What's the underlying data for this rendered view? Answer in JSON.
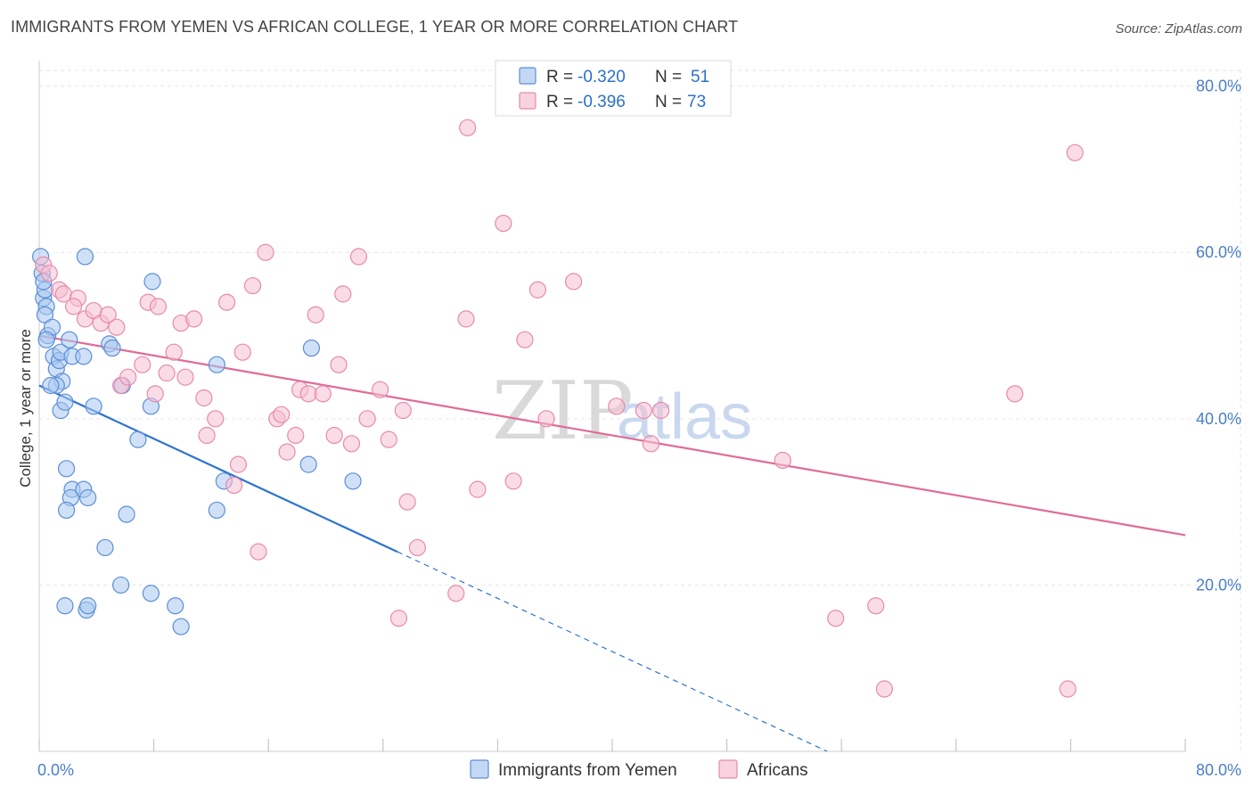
{
  "title": "IMMIGRANTS FROM YEMEN VS AFRICAN COLLEGE, 1 YEAR OR MORE CORRELATION CHART",
  "source": "Source: ZipAtlas.com",
  "watermark": {
    "zip": "ZIP",
    "atlas": "atlas"
  },
  "colors": {
    "blue_fill": "#aac8f0",
    "blue_stroke": "#5b8fd6",
    "blue_line": "#2e74d0",
    "pink_fill": "#f6bfd1",
    "pink_stroke": "#e88aab",
    "pink_line": "#e06b97",
    "grid": "#e6e6e6",
    "tick_text": "#4a7fc8"
  },
  "legend": {
    "rows": [
      {
        "r_label": "R = ",
        "r_value": "-0.320",
        "n_label": "N = ",
        "n_value": "51"
      },
      {
        "r_label": "R = ",
        "r_value": "-0.396",
        "n_label": "N = ",
        "n_value": "73"
      }
    ]
  },
  "chart_data": {
    "type": "scatter",
    "title": "IMMIGRANTS FROM YEMEN VS AFRICAN COLLEGE, 1 YEAR OR MORE CORRELATION CHART",
    "ylabel": "College, 1 year or more",
    "xlabel": "",
    "xlim": [
      0,
      80
    ],
    "ylim": [
      0,
      82
    ],
    "x_ticks": [
      "0.0%",
      "80.0%"
    ],
    "y_ticks": [
      {
        "value": 20,
        "label": "20.0%"
      },
      {
        "value": 40,
        "label": "40.0%"
      },
      {
        "value": 60,
        "label": "60.0%"
      },
      {
        "value": 80,
        "label": "80.0%"
      }
    ],
    "grid": true,
    "legend_position": "top-center",
    "series": [
      {
        "name": "Immigrants from Yemen",
        "color": "#5b8fd6",
        "r": -0.32,
        "n": 51,
        "trend": {
          "x0": 0,
          "y0": 44.0,
          "x1": 25,
          "y1": 24.0,
          "dashed_to_x": 55
        },
        "points": [
          [
            0.1,
            59.5
          ],
          [
            0.2,
            57.5
          ],
          [
            0.3,
            54.5
          ],
          [
            0.4,
            55.5
          ],
          [
            0.5,
            53.5
          ],
          [
            0.4,
            52.5
          ],
          [
            0.6,
            50.0
          ],
          [
            0.9,
            51.0
          ],
          [
            1.0,
            47.5
          ],
          [
            1.2,
            46.0
          ],
          [
            1.4,
            47.0
          ],
          [
            1.5,
            48.0
          ],
          [
            1.6,
            44.5
          ],
          [
            1.2,
            44.0
          ],
          [
            0.8,
            44.0
          ],
          [
            1.5,
            41.0
          ],
          [
            1.8,
            42.0
          ],
          [
            2.1,
            49.5
          ],
          [
            2.3,
            47.5
          ],
          [
            3.1,
            47.5
          ],
          [
            3.8,
            41.5
          ],
          [
            4.9,
            49.0
          ],
          [
            5.1,
            48.5
          ],
          [
            5.8,
            44.0
          ],
          [
            6.9,
            37.5
          ],
          [
            7.8,
            41.5
          ],
          [
            7.9,
            56.5
          ],
          [
            12.4,
            46.5
          ],
          [
            12.9,
            32.5
          ],
          [
            12.4,
            29.0
          ],
          [
            19.0,
            48.5
          ],
          [
            18.8,
            34.5
          ],
          [
            21.9,
            32.5
          ],
          [
            3.2,
            59.5
          ],
          [
            1.9,
            34.0
          ],
          [
            2.3,
            31.5
          ],
          [
            2.2,
            30.5
          ],
          [
            1.9,
            29.0
          ],
          [
            3.1,
            31.5
          ],
          [
            3.4,
            30.5
          ],
          [
            6.1,
            28.5
          ],
          [
            4.6,
            24.5
          ],
          [
            5.7,
            20.0
          ],
          [
            7.8,
            19.0
          ],
          [
            9.5,
            17.5
          ],
          [
            9.9,
            15.0
          ],
          [
            1.8,
            17.5
          ],
          [
            3.3,
            17.0
          ],
          [
            3.4,
            17.5
          ],
          [
            0.3,
            56.5
          ],
          [
            0.5,
            49.5
          ]
        ]
      },
      {
        "name": "Africans",
        "color": "#e88aab",
        "r": -0.396,
        "n": 73,
        "trend": {
          "x0": 0,
          "y0": 50.0,
          "x1": 80,
          "y1": 26.0
        },
        "points": [
          [
            0.3,
            58.5
          ],
          [
            0.7,
            57.5
          ],
          [
            1.4,
            55.5
          ],
          [
            1.7,
            55.0
          ],
          [
            2.7,
            54.5
          ],
          [
            2.4,
            53.5
          ],
          [
            3.2,
            52.0
          ],
          [
            3.8,
            53.0
          ],
          [
            4.3,
            51.5
          ],
          [
            4.8,
            52.5
          ],
          [
            5.4,
            51.0
          ],
          [
            5.7,
            44.0
          ],
          [
            6.2,
            45.0
          ],
          [
            7.2,
            46.5
          ],
          [
            8.1,
            43.0
          ],
          [
            7.6,
            54.0
          ],
          [
            8.3,
            53.5
          ],
          [
            8.9,
            45.5
          ],
          [
            9.4,
            48.0
          ],
          [
            9.9,
            51.5
          ],
          [
            10.2,
            45.0
          ],
          [
            10.8,
            52.0
          ],
          [
            11.5,
            42.5
          ],
          [
            11.7,
            38.0
          ],
          [
            12.3,
            40.0
          ],
          [
            13.1,
            54.0
          ],
          [
            13.6,
            32.0
          ],
          [
            13.9,
            34.5
          ],
          [
            14.2,
            48.0
          ],
          [
            14.9,
            56.0
          ],
          [
            15.3,
            24.0
          ],
          [
            15.8,
            60.0
          ],
          [
            16.6,
            40.0
          ],
          [
            16.9,
            40.5
          ],
          [
            17.3,
            36.0
          ],
          [
            17.9,
            38.0
          ],
          [
            18.2,
            43.5
          ],
          [
            18.8,
            43.0
          ],
          [
            19.3,
            52.5
          ],
          [
            19.8,
            43.0
          ],
          [
            20.6,
            38.0
          ],
          [
            20.9,
            46.5
          ],
          [
            21.2,
            55.0
          ],
          [
            21.8,
            37.0
          ],
          [
            22.3,
            59.5
          ],
          [
            22.9,
            40.0
          ],
          [
            23.8,
            43.5
          ],
          [
            24.4,
            37.5
          ],
          [
            25.1,
            16.0
          ],
          [
            25.4,
            41.0
          ],
          [
            25.7,
            30.0
          ],
          [
            26.4,
            24.5
          ],
          [
            29.1,
            19.0
          ],
          [
            29.8,
            52.0
          ],
          [
            30.6,
            31.5
          ],
          [
            32.4,
            63.5
          ],
          [
            33.1,
            32.5
          ],
          [
            33.9,
            49.5
          ],
          [
            34.8,
            55.5
          ],
          [
            35.4,
            40.0
          ],
          [
            37.3,
            56.5
          ],
          [
            40.3,
            41.5
          ],
          [
            42.2,
            41.0
          ],
          [
            42.7,
            37.0
          ],
          [
            43.4,
            41.0
          ],
          [
            51.9,
            35.0
          ],
          [
            55.6,
            16.0
          ],
          [
            58.4,
            17.5
          ],
          [
            59.0,
            7.5
          ],
          [
            68.1,
            43.0
          ],
          [
            71.8,
            7.5
          ],
          [
            72.3,
            72.0
          ],
          [
            29.9,
            75.0
          ]
        ]
      }
    ]
  }
}
